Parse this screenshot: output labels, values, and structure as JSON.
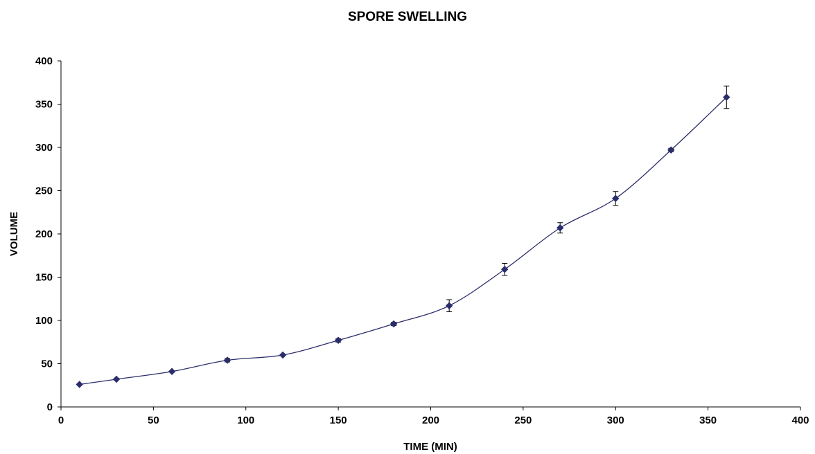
{
  "chart_data": {
    "type": "line",
    "title": "SPORE SWELLING",
    "xlabel": "TIME (MIN)",
    "ylabel": "VOLUME",
    "xlim": [
      0,
      400
    ],
    "ylim": [
      0,
      400
    ],
    "xticks": [
      0,
      50,
      100,
      150,
      200,
      250,
      300,
      350,
      400
    ],
    "yticks": [
      0,
      50,
      100,
      150,
      200,
      250,
      300,
      350,
      400
    ],
    "grid": false,
    "legend": "none",
    "series_color": "#2b2d6b",
    "series": [
      {
        "x": [
          10,
          30,
          60,
          90,
          120,
          150,
          180,
          210,
          240,
          270,
          300,
          330,
          360
        ],
        "y": [
          26,
          32,
          41,
          54,
          60,
          77,
          96,
          117,
          159,
          207,
          241,
          297,
          358
        ],
        "error": [
          0,
          0,
          0,
          2,
          0,
          2,
          2,
          7,
          7,
          6,
          8,
          2,
          13
        ]
      }
    ]
  }
}
